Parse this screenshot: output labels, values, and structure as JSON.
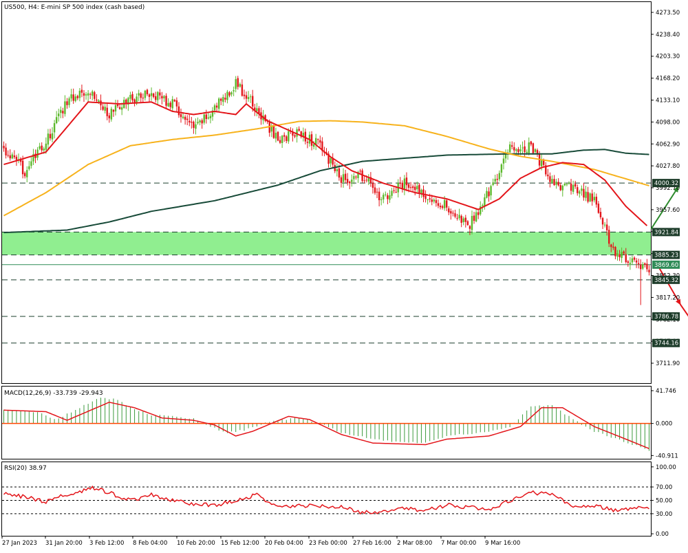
{
  "header": {
    "main_label": "US500, H4:  E-mini SP 500 index (cash based)",
    "macd_label": "MACD(12,26,9) -33.739 -29.943",
    "rsi_label": "RSI(20) 38.97"
  },
  "colors": {
    "bull": "#5cb82c",
    "bear": "#e3151a",
    "ma_fast": "#e3151a",
    "ma_mid": "#f7b21b",
    "ma_slow": "#174a38",
    "zone": "#90ee90",
    "arrow_up": "#2e8b2e",
    "arrow_down": "#e3151a",
    "macd_hist": "#3c9a3c",
    "macd_signal": "#e3151a",
    "rsi_line": "#e3151a"
  },
  "chart_data": [
    {
      "id": "price",
      "type": "candlestick",
      "title": "US500, H4:  E-mini SP 500 index (cash based)",
      "ylim": [
        3680.0,
        4290.0
      ],
      "y_ticks": [
        "4273.50",
        "4238.40",
        "4203.30",
        "4168.20",
        "4133.10",
        "4098.00",
        "4062.90",
        "4027.80",
        "3992.70",
        "3957.60",
        "3922.50",
        "3887.40",
        "3852.30",
        "3817.20",
        "3782.10",
        "3747.00",
        "3711.90"
      ],
      "x_labels": [
        "27 Jan 2023",
        "31 Jan 20:00",
        "3 Feb 12:00",
        "8 Feb 04:00",
        "10 Feb 20:00",
        "15 Feb 12:00",
        "20 Feb 04:00",
        "23 Feb 00:00",
        "27 Feb 16:00",
        "2 Mar 08:00",
        "7 Mar 00:00",
        "9 Mar 16:00"
      ],
      "levels": [
        {
          "value": 4000.32,
          "label": "4000.32"
        },
        {
          "value": 3921.84,
          "label": "3921.84"
        },
        {
          "value": 3885.23,
          "label": "3885.23"
        },
        {
          "value": 3869.6,
          "label": "3869.60"
        },
        {
          "value": 3845.32,
          "label": "3845.32"
        },
        {
          "value": 3786.78,
          "label": "3786.78"
        },
        {
          "value": 3744.16,
          "label": "3744.16"
        }
      ],
      "zone": [
        3885.23,
        3921.84
      ],
      "close_anchors": [
        [
          0,
          4053
        ],
        [
          10,
          4020
        ],
        [
          20,
          4065
        ],
        [
          30,
          4133
        ],
        [
          40,
          4152
        ],
        [
          50,
          4110
        ],
        [
          60,
          4135
        ],
        [
          70,
          4145
        ],
        [
          80,
          4127
        ],
        [
          90,
          4085
        ],
        [
          100,
          4120
        ],
        [
          110,
          4160
        ],
        [
          120,
          4117
        ],
        [
          130,
          4070
        ],
        [
          140,
          4082
        ],
        [
          150,
          4060
        ],
        [
          160,
          4005
        ],
        [
          170,
          4012
        ],
        [
          180,
          3973
        ],
        [
          190,
          4000
        ],
        [
          200,
          3982
        ],
        [
          210,
          3964
        ],
        [
          220,
          3928
        ],
        [
          230,
          3985
        ],
        [
          240,
          4055
        ],
        [
          250,
          4060
        ],
        [
          260,
          3998
        ],
        [
          270,
          3990
        ],
        [
          280,
          3972
        ],
        [
          290,
          3885
        ],
        [
          300,
          3875
        ],
        [
          305,
          3862
        ]
      ],
      "ma_fast": [
        [
          0,
          4030
        ],
        [
          20,
          4050
        ],
        [
          35,
          4110
        ],
        [
          40,
          4130
        ],
        [
          55,
          4127
        ],
        [
          70,
          4130
        ],
        [
          80,
          4115
        ],
        [
          90,
          4110
        ],
        [
          100,
          4115
        ],
        [
          110,
          4110
        ],
        [
          115,
          4127
        ],
        [
          125,
          4100
        ],
        [
          135,
          4085
        ],
        [
          145,
          4070
        ],
        [
          155,
          4042
        ],
        [
          165,
          4020
        ],
        [
          180,
          4000
        ],
        [
          195,
          3985
        ],
        [
          210,
          3975
        ],
        [
          225,
          3958
        ],
        [
          235,
          3975
        ],
        [
          245,
          4008
        ],
        [
          255,
          4025
        ],
        [
          265,
          4033
        ],
        [
          275,
          4030
        ],
        [
          285,
          4005
        ],
        [
          295,
          3963
        ],
        [
          305,
          3932
        ]
      ],
      "ma_mid": [
        [
          0,
          3948
        ],
        [
          20,
          3985
        ],
        [
          40,
          4030
        ],
        [
          60,
          4060
        ],
        [
          80,
          4070
        ],
        [
          100,
          4077
        ],
        [
          120,
          4087
        ],
        [
          140,
          4099
        ],
        [
          155,
          4100
        ],
        [
          170,
          4098
        ],
        [
          190,
          4092
        ],
        [
          210,
          4075
        ],
        [
          230,
          4055
        ],
        [
          245,
          4043
        ],
        [
          260,
          4035
        ],
        [
          280,
          4022
        ],
        [
          295,
          4007
        ],
        [
          306,
          3996
        ]
      ],
      "ma_slow": [
        [
          0,
          3921
        ],
        [
          30,
          3925
        ],
        [
          50,
          3938
        ],
        [
          70,
          3955
        ],
        [
          100,
          3972
        ],
        [
          130,
          3997
        ],
        [
          150,
          4020
        ],
        [
          170,
          4035
        ],
        [
          190,
          4040
        ],
        [
          210,
          4045
        ],
        [
          240,
          4047
        ],
        [
          260,
          4047
        ],
        [
          275,
          4053
        ],
        [
          285,
          4054
        ],
        [
          295,
          4048
        ],
        [
          306,
          4046
        ]
      ],
      "annotations": [
        {
          "type": "arrow-up",
          "from": [
            307,
            3927
          ],
          "to": [
            320,
            3995
          ]
        },
        {
          "type": "arrow-down",
          "from": [
            310,
            3869
          ],
          "to": [
            333,
            3747
          ]
        }
      ]
    },
    {
      "id": "macd",
      "type": "histogram-line",
      "title": "MACD(12,26,9) -33.739 -29.943",
      "ylim": [
        -45.0,
        47.0
      ],
      "y_ticks": [
        "41.746",
        "0.000",
        "-40.911"
      ],
      "hist_anchors": [
        [
          0,
          17
        ],
        [
          15,
          15
        ],
        [
          25,
          5
        ],
        [
          30,
          12
        ],
        [
          45,
          33
        ],
        [
          55,
          30
        ],
        [
          60,
          20
        ],
        [
          70,
          11
        ],
        [
          80,
          9
        ],
        [
          90,
          6
        ],
        [
          95,
          0
        ],
        [
          105,
          -12
        ],
        [
          115,
          -8
        ],
        [
          125,
          2
        ],
        [
          140,
          7
        ],
        [
          150,
          0
        ],
        [
          160,
          -12
        ],
        [
          180,
          -22
        ],
        [
          200,
          -25
        ],
        [
          210,
          -16
        ],
        [
          225,
          -12
        ],
        [
          240,
          -5
        ],
        [
          250,
          22
        ],
        [
          260,
          23
        ],
        [
          270,
          5
        ],
        [
          280,
          -10
        ],
        [
          295,
          -24
        ],
        [
          306,
          -34
        ]
      ],
      "signal_anchors": [
        [
          0,
          17
        ],
        [
          20,
          15
        ],
        [
          30,
          4
        ],
        [
          50,
          27
        ],
        [
          62,
          20
        ],
        [
          75,
          7
        ],
        [
          90,
          4
        ],
        [
          100,
          -2
        ],
        [
          110,
          -16
        ],
        [
          118,
          -10
        ],
        [
          135,
          9
        ],
        [
          145,
          5
        ],
        [
          160,
          -14
        ],
        [
          175,
          -25
        ],
        [
          200,
          -27
        ],
        [
          210,
          -20
        ],
        [
          230,
          -16
        ],
        [
          245,
          -4
        ],
        [
          255,
          20
        ],
        [
          265,
          20
        ],
        [
          280,
          -4
        ],
        [
          295,
          -20
        ],
        [
          306,
          -32
        ]
      ]
    },
    {
      "id": "rsi",
      "type": "line",
      "title": "RSI(20) 38.97",
      "ylim": [
        -3.0,
        107.0
      ],
      "y_ticks": [
        "100.00",
        "70.00",
        "50.00",
        "30.00",
        "0.00"
      ],
      "levels": [
        70,
        50,
        30
      ],
      "series_anchors": [
        [
          0,
          60
        ],
        [
          10,
          55
        ],
        [
          20,
          48
        ],
        [
          25,
          55
        ],
        [
          35,
          60
        ],
        [
          40,
          70
        ],
        [
          50,
          62
        ],
        [
          55,
          55
        ],
        [
          60,
          50
        ],
        [
          70,
          58
        ],
        [
          80,
          50
        ],
        [
          90,
          45
        ],
        [
          100,
          42
        ],
        [
          110,
          50
        ],
        [
          120,
          58
        ],
        [
          130,
          40
        ],
        [
          140,
          42
        ],
        [
          160,
          40
        ],
        [
          170,
          32
        ],
        [
          180,
          33
        ],
        [
          190,
          38
        ],
        [
          200,
          35
        ],
        [
          210,
          43
        ],
        [
          220,
          40
        ],
        [
          230,
          35
        ],
        [
          240,
          50
        ],
        [
          250,
          62
        ],
        [
          260,
          58
        ],
        [
          270,
          42
        ],
        [
          280,
          42
        ],
        [
          290,
          35
        ],
        [
          300,
          38
        ],
        [
          306,
          39
        ]
      ]
    }
  ]
}
